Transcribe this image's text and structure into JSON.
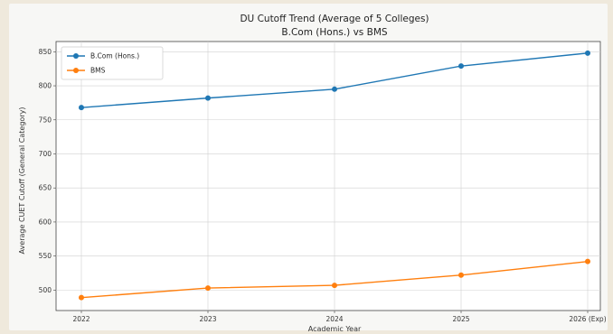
{
  "chart_data": {
    "type": "line",
    "title": "DU Cutoff Trend (Average of 5 Colleges)",
    "subtitle": "B.Com (Hons.) vs BMS",
    "xlabel": "Academic Year",
    "ylabel": "Average CUET Cutoff (General Category)",
    "categories": [
      "2022",
      "2023",
      "2024",
      "2025",
      "2026 (Exp)"
    ],
    "ylim": [
      470,
      865
    ],
    "yticks": [
      500,
      550,
      600,
      650,
      700,
      750,
      800,
      850
    ],
    "grid": true,
    "legend_position": "top-left",
    "series": [
      {
        "name": "B.Com (Hons.)",
        "color": "#1f77b4",
        "values": [
          768,
          782,
          795,
          829,
          848
        ]
      },
      {
        "name": "BMS",
        "color": "#ff7f0e",
        "values": [
          489,
          503,
          507,
          522,
          542
        ]
      }
    ]
  }
}
